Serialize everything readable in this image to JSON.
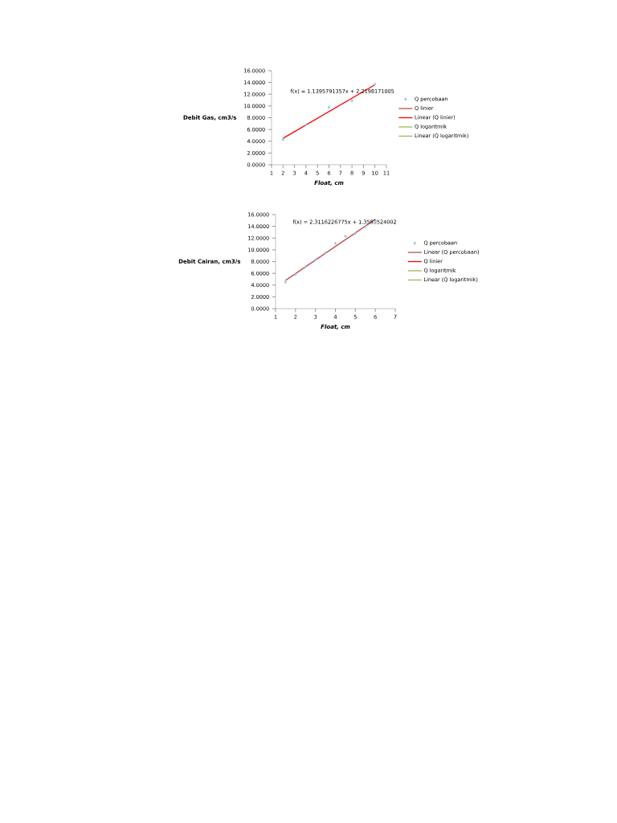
{
  "chart_data": [
    {
      "type": "scatter",
      "xlabel": "Float, cm",
      "ylabel": "Debit Gas, cm3/s",
      "annotations": [
        "f(x) = 1.1395791357x + 2.2198171005"
      ],
      "xlim": [
        1,
        11
      ],
      "xticks": [
        1,
        2,
        3,
        4,
        5,
        6,
        7,
        8,
        9,
        10,
        11
      ],
      "ylim": [
        0,
        16
      ],
      "yticks": [
        {
          "value": 0,
          "label": "0.0000"
        },
        {
          "value": 2,
          "label": "2.0000"
        },
        {
          "value": 4,
          "label": "4.0000"
        },
        {
          "value": 6,
          "label": "6.0000"
        },
        {
          "value": 8,
          "label": "8.0000"
        },
        {
          "value": 10,
          "label": "10.0000"
        },
        {
          "value": 12,
          "label": "12.0000"
        },
        {
          "value": 14,
          "label": "14.0000"
        },
        {
          "value": 16,
          "label": "16.0000"
        }
      ],
      "grid": false,
      "legend": "right",
      "series": [
        {
          "name": "Q percobaan",
          "marker": "diamond",
          "color": "#9dc3e6",
          "x": [
            2,
            4,
            6,
            8,
            10
          ],
          "values": [
            4.3,
            6.8,
            9.8,
            10.9,
            13.7
          ]
        },
        {
          "name": "Q linier",
          "type": "line",
          "color": "#c0504d"
        },
        {
          "name": "Linear (Q linier)",
          "type": "line",
          "color": "#ff0000",
          "x": [
            2,
            10
          ],
          "values": [
            4.5,
            13.6
          ]
        },
        {
          "name": "Q logaritmik",
          "type": "line",
          "color": "#9bbb59"
        },
        {
          "name": "Linear (Q logaritmik)",
          "type": "line",
          "color": "#9bbb59"
        }
      ]
    },
    {
      "type": "scatter",
      "xlabel": "Float, cm",
      "ylabel": "Debit Cairan, cm3/s",
      "annotations": [
        "f(x) = 2.3116226775x + 1.3583524002"
      ],
      "xlim": [
        1,
        7
      ],
      "xticks": [
        1,
        2,
        3,
        4,
        5,
        6,
        7
      ],
      "ylim": [
        0,
        16
      ],
      "yticks": [
        {
          "value": 0,
          "label": "0.0000"
        },
        {
          "value": 2,
          "label": "2.0000"
        },
        {
          "value": 4,
          "label": "4.0000"
        },
        {
          "value": 6,
          "label": "6.0000"
        },
        {
          "value": 8,
          "label": "8.0000"
        },
        {
          "value": 10,
          "label": "10.0000"
        },
        {
          "value": 12,
          "label": "12.0000"
        },
        {
          "value": 14,
          "label": "14.0000"
        },
        {
          "value": 16,
          "label": "16.0000"
        }
      ],
      "grid": false,
      "legend": "right",
      "series": [
        {
          "name": "Q percobaan",
          "marker": "diamond",
          "color": "#9dc3e6",
          "x": [
            1.5,
            2,
            2.5,
            3,
            3.5,
            4,
            4.5,
            5,
            5.5,
            6
          ],
          "values": [
            4.5,
            5.8,
            7.1,
            8.3,
            9.5,
            11.1,
            12.3,
            12.8,
            13.9,
            14.8
          ]
        },
        {
          "name": "Linear (Q percobaan)",
          "type": "line",
          "color": "#c0504d",
          "x": [
            1.5,
            6
          ],
          "values": [
            4.8,
            15.2
          ]
        },
        {
          "name": "Q linier",
          "type": "line",
          "color": "#ff0000"
        },
        {
          "name": "Q logaritmik",
          "type": "line",
          "color": "#9bbb59"
        },
        {
          "name": "Linear (Q logaritmik)",
          "type": "line",
          "color": "#9bbb59"
        }
      ]
    }
  ]
}
